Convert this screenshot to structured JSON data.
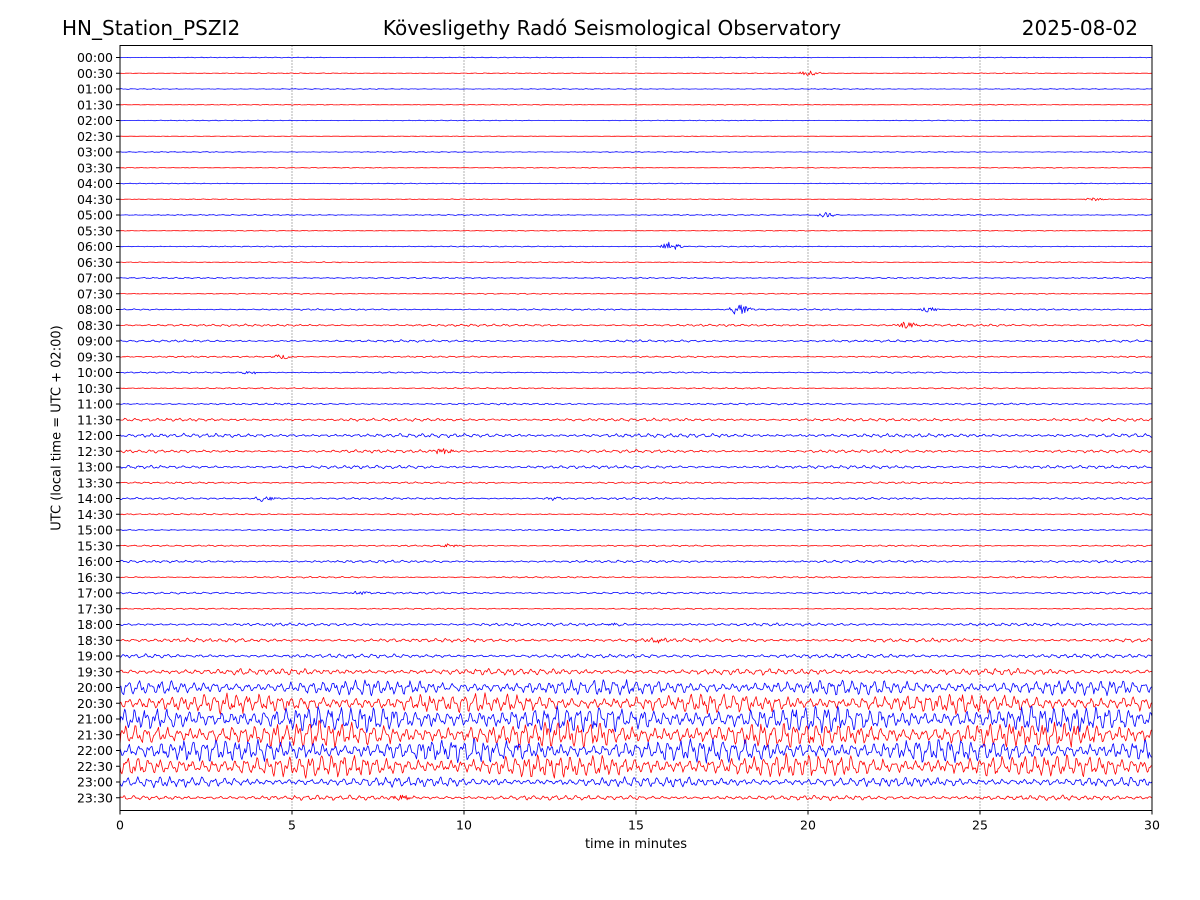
{
  "header": {
    "station": "HN_Station_PSZI2",
    "observatory": "Kövesligethy Radó Seismological Observatory",
    "date": "2025-08-02"
  },
  "chart_data": {
    "type": "line",
    "xlabel": "time in minutes",
    "ylabel": "UTC (local time = UTC + 02:00)",
    "xlim": [
      0,
      30
    ],
    "x_ticks": [
      "0",
      "5",
      "10",
      "15",
      "20",
      "25",
      "30"
    ],
    "grid": "vertical dotted lines at 5-minute intervals",
    "colors": {
      "even_rows": "#0000ff",
      "odd_rows": "#ff0000"
    },
    "rows": [
      {
        "label": "00:00",
        "amp": 0.3
      },
      {
        "label": "00:30",
        "amp": 0.3
      },
      {
        "label": "01:00",
        "amp": 0.3
      },
      {
        "label": "01:30",
        "amp": 0.3
      },
      {
        "label": "02:00",
        "amp": 0.3
      },
      {
        "label": "02:30",
        "amp": 0.2
      },
      {
        "label": "03:00",
        "amp": 0.3
      },
      {
        "label": "03:30",
        "amp": 0.3
      },
      {
        "label": "04:00",
        "amp": 0.3
      },
      {
        "label": "04:30",
        "amp": 0.3
      },
      {
        "label": "05:00",
        "amp": 0.4
      },
      {
        "label": "05:30",
        "amp": 0.3
      },
      {
        "label": "06:00",
        "amp": 0.4
      },
      {
        "label": "06:30",
        "amp": 0.4
      },
      {
        "label": "07:00",
        "amp": 0.5
      },
      {
        "label": "07:30",
        "amp": 0.4
      },
      {
        "label": "08:00",
        "amp": 0.6
      },
      {
        "label": "08:30",
        "amp": 0.9
      },
      {
        "label": "09:00",
        "amp": 0.9
      },
      {
        "label": "09:30",
        "amp": 0.6
      },
      {
        "label": "10:00",
        "amp": 0.6
      },
      {
        "label": "10:30",
        "amp": 0.5
      },
      {
        "label": "11:00",
        "amp": 0.7
      },
      {
        "label": "11:30",
        "amp": 1.2
      },
      {
        "label": "12:00",
        "amp": 1.6
      },
      {
        "label": "12:30",
        "amp": 1.2
      },
      {
        "label": "13:00",
        "amp": 1.3
      },
      {
        "label": "13:30",
        "amp": 0.7
      },
      {
        "label": "14:00",
        "amp": 0.8
      },
      {
        "label": "14:30",
        "amp": 0.6
      },
      {
        "label": "15:00",
        "amp": 0.5
      },
      {
        "label": "15:30",
        "amp": 0.6
      },
      {
        "label": "16:00",
        "amp": 1.0
      },
      {
        "label": "16:30",
        "amp": 0.6
      },
      {
        "label": "17:00",
        "amp": 0.8
      },
      {
        "label": "17:30",
        "amp": 0.5
      },
      {
        "label": "18:00",
        "amp": 1.2
      },
      {
        "label": "18:30",
        "amp": 1.5
      },
      {
        "label": "19:00",
        "amp": 1.6
      },
      {
        "label": "19:30",
        "amp": 2.6
      },
      {
        "label": "20:00",
        "amp": 6.0
      },
      {
        "label": "20:30",
        "amp": 7.5
      },
      {
        "label": "21:00",
        "amp": 10.0
      },
      {
        "label": "21:30",
        "amp": 10.0
      },
      {
        "label": "22:00",
        "amp": 9.0
      },
      {
        "label": "22:30",
        "amp": 9.0
      },
      {
        "label": "23:00",
        "amp": 4.0
      },
      {
        "label": "23:30",
        "amp": 2.0
      }
    ],
    "events": [
      {
        "row": "00:30",
        "minute": 20.0,
        "amp": 3
      },
      {
        "row": "04:30",
        "minute": 28.3,
        "amp": 2
      },
      {
        "row": "05:00",
        "minute": 20.5,
        "amp": 3
      },
      {
        "row": "06:00",
        "minute": 16.0,
        "amp": 6
      },
      {
        "row": "08:00",
        "minute": 18.0,
        "amp": 7
      },
      {
        "row": "08:00",
        "minute": 23.5,
        "amp": 3
      },
      {
        "row": "08:30",
        "minute": 22.9,
        "amp": 4
      },
      {
        "row": "09:30",
        "minute": 4.7,
        "amp": 3
      },
      {
        "row": "10:00",
        "minute": 3.8,
        "amp": 2
      },
      {
        "row": "12:30",
        "minute": 9.4,
        "amp": 3
      },
      {
        "row": "14:00",
        "minute": 4.2,
        "amp": 4
      },
      {
        "row": "14:00",
        "minute": 12.6,
        "amp": 2
      },
      {
        "row": "15:30",
        "minute": 9.6,
        "amp": 2
      },
      {
        "row": "17:00",
        "minute": 7.0,
        "amp": 2
      },
      {
        "row": "18:00",
        "minute": 14.4,
        "amp": 2
      },
      {
        "row": "18:30",
        "minute": 15.6,
        "amp": 3
      },
      {
        "row": "23:30",
        "minute": 8.2,
        "amp": 3
      }
    ]
  }
}
